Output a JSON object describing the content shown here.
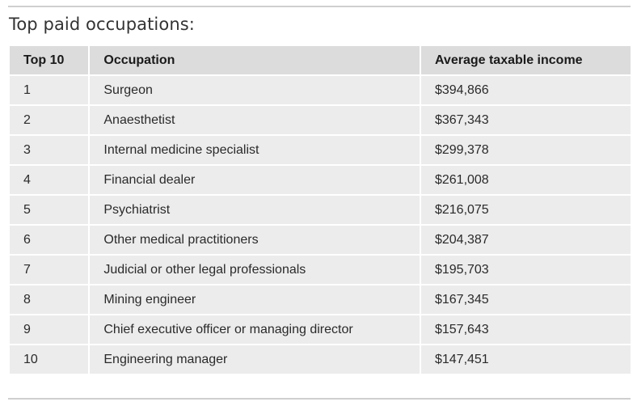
{
  "heading": "Top paid occupations:",
  "table": {
    "headers": [
      "Top 10",
      "Occupation",
      "Average taxable income"
    ],
    "rows": [
      {
        "rank": "1",
        "occupation": "Surgeon",
        "income": "$394,866"
      },
      {
        "rank": "2",
        "occupation": "Anaesthetist",
        "income": "$367,343"
      },
      {
        "rank": "3",
        "occupation": "Internal medicine specialist",
        "income": "$299,378"
      },
      {
        "rank": "4",
        "occupation": "Financial dealer",
        "income": "$261,008"
      },
      {
        "rank": "5",
        "occupation": "Psychiatrist",
        "income": "$216,075"
      },
      {
        "rank": "6",
        "occupation": "Other medical practitioners",
        "income": "$204,387"
      },
      {
        "rank": "7",
        "occupation": "Judicial or other legal professionals",
        "income": "$195,703"
      },
      {
        "rank": "8",
        "occupation": "Mining engineer",
        "income": "$167,345"
      },
      {
        "rank": "9",
        "occupation": "Chief executive officer or managing director",
        "income": "$157,643"
      },
      {
        "rank": "10",
        "occupation": "Engineering manager",
        "income": "$147,451"
      }
    ]
  }
}
